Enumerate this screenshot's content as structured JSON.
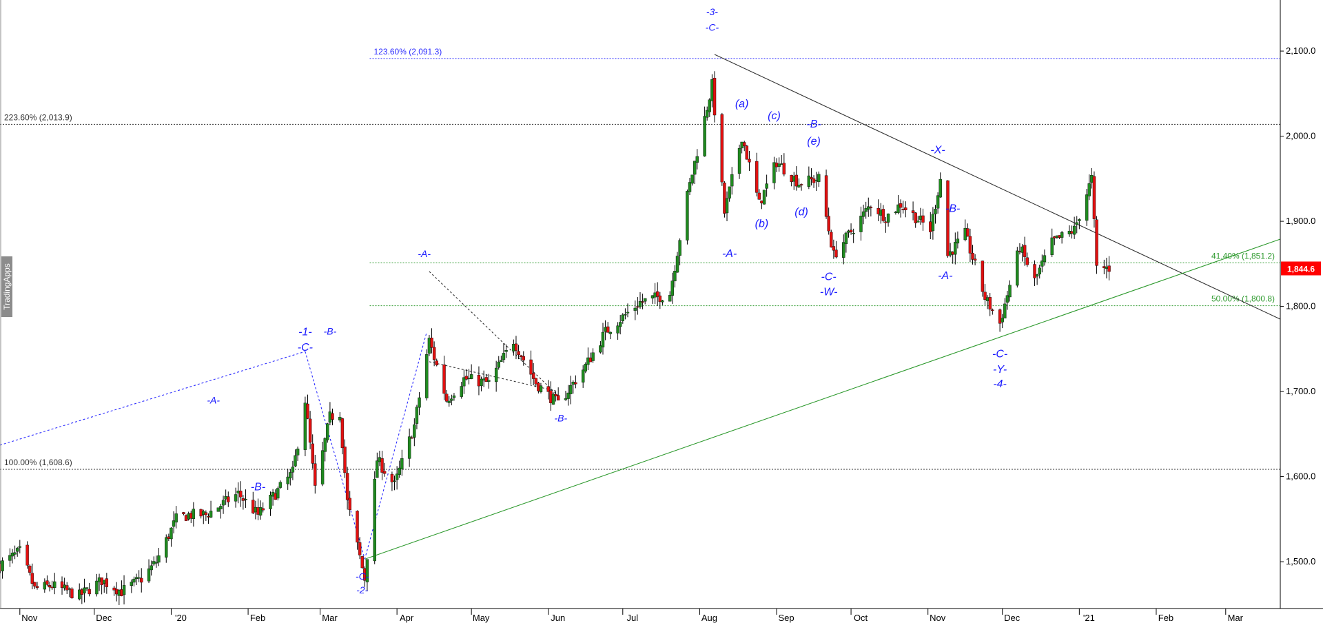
{
  "chart_data": {
    "type": "candlestick",
    "instrument_note": "",
    "watermark": "TradingApps",
    "y_axis": {
      "ylim": [
        1445,
        2160
      ],
      "ticks": [
        1500,
        1600,
        1700,
        1800,
        1900,
        2000,
        2100
      ],
      "tick_labels": [
        "1,500.0",
        "1,600.0",
        "1,700.0",
        "1,800.0",
        "1,900.0",
        "2,000.0",
        "2,100.0"
      ],
      "position": "right"
    },
    "x_axis": {
      "labels": [
        "Nov",
        "Dec",
        "'20",
        "Feb",
        "Mar",
        "Apr",
        "May",
        "Jun",
        "Jul",
        "Aug",
        "Sep",
        "Oct",
        "Nov",
        "Dec",
        "'21",
        "Feb",
        "Mar"
      ],
      "start": "2019-10-24",
      "end": "2021-03-23"
    },
    "last_price": {
      "value": 1844.6,
      "label": "1,844.6",
      "color": "#ff0000"
    },
    "fib_lines": [
      {
        "label": "123.60% (2,091.3)",
        "value": 2091.3,
        "color": "#2b2bff",
        "start": "2020-03-21",
        "label_side": "left"
      },
      {
        "label": "223.60% (2,013.9)",
        "value": 2013.9,
        "color": "#333333",
        "start": "2019-10-24",
        "label_side": "left"
      },
      {
        "label": "41.40% (1,851.2)",
        "value": 1851.2,
        "color": "#2e9a2e",
        "start": "2020-03-21",
        "label_side": "right"
      },
      {
        "label": "50.00% (1,800.8)",
        "value": 1800.8,
        "color": "#2e9a2e",
        "start": "2020-03-21",
        "label_side": "right"
      },
      {
        "label": "100.00% (1,608.6)",
        "value": 1608.6,
        "color": "#333333",
        "start": "2019-10-24",
        "label_side": "left"
      }
    ],
    "trendlines": [
      {
        "name": "resistance",
        "color": "#333333",
        "dash": false,
        "points": [
          [
            "2020-08-07",
            2096
          ],
          [
            "2021-03-23",
            1785
          ]
        ]
      },
      {
        "name": "support",
        "color": "#2e9a2e",
        "dash": false,
        "points": [
          [
            "2020-03-19",
            1503
          ],
          [
            "2021-03-23",
            1879
          ]
        ]
      },
      {
        "name": "wave-channel",
        "color": "#2b2bff",
        "dash": true,
        "points": [
          [
            "2019-10-24",
            1637
          ],
          [
            "2020-02-24",
            1747
          ]
        ]
      },
      {
        "name": "wave-drop",
        "color": "#2b2bff",
        "dash": true,
        "points": [
          [
            "2020-02-24",
            1747
          ],
          [
            "2020-03-19",
            1503
          ]
        ]
      },
      {
        "name": "wave-rise",
        "color": "#2b2bff",
        "dash": true,
        "points": [
          [
            "2020-03-19",
            1503
          ],
          [
            "2020-04-13",
            1770
          ]
        ]
      },
      {
        "name": "corr-upper",
        "color": "#333333",
        "dash": true,
        "points": [
          [
            "2020-04-14",
            1735
          ],
          [
            "2020-06-05",
            1700
          ]
        ]
      },
      {
        "name": "corr-lower",
        "color": "#333333",
        "dash": true,
        "points": [
          [
            "2020-04-14",
            1841
          ],
          [
            "2020-06-05",
            1695
          ]
        ]
      }
    ],
    "wave_labels": [
      {
        "text": "-3-",
        "date": "2020-08-06",
        "price": 2142,
        "size": 14
      },
      {
        "text": "-C-",
        "date": "2020-08-06",
        "price": 2124,
        "size": 14
      },
      {
        "text": "(a)",
        "date": "2020-08-18",
        "price": 2034,
        "size": 16
      },
      {
        "text": "(c)",
        "date": "2020-08-31",
        "price": 2020,
        "size": 16
      },
      {
        "text": "-B-",
        "date": "2020-09-16",
        "price": 2010,
        "size": 16
      },
      {
        "text": "(e)",
        "date": "2020-09-16",
        "price": 1990,
        "size": 16
      },
      {
        "text": "(b)",
        "date": "2020-08-26",
        "price": 1893,
        "size": 16
      },
      {
        "text": "(d)",
        "date": "2020-09-11",
        "price": 1907,
        "size": 16
      },
      {
        "text": "-A-",
        "date": "2020-08-13",
        "price": 1858,
        "size": 16
      },
      {
        "text": "-X-",
        "date": "2020-11-05",
        "price": 1980,
        "size": 16
      },
      {
        "text": "-B-",
        "date": "2020-11-11",
        "price": 1911,
        "size": 16
      },
      {
        "text": "-A-",
        "date": "2020-11-08",
        "price": 1832,
        "size": 16
      },
      {
        "text": "-C-",
        "date": "2020-09-22",
        "price": 1831,
        "size": 16
      },
      {
        "text": "-W-",
        "date": "2020-09-22",
        "price": 1813,
        "size": 16
      },
      {
        "text": "-C-",
        "date": "2020-11-30",
        "price": 1740,
        "size": 16
      },
      {
        "text": "-Y-",
        "date": "2020-11-30",
        "price": 1722,
        "size": 16
      },
      {
        "text": "-4-",
        "date": "2020-11-30",
        "price": 1705,
        "size": 16
      },
      {
        "text": "-A-",
        "date": "2020-04-12",
        "price": 1858,
        "size": 14
      },
      {
        "text": "-B-",
        "date": "2020-06-06",
        "price": 1665,
        "size": 14
      },
      {
        "text": "-1-",
        "date": "2020-02-24",
        "price": 1766,
        "size": 16
      },
      {
        "text": "-C-",
        "date": "2020-02-24",
        "price": 1748,
        "size": 16
      },
      {
        "text": "-B-",
        "date": "2020-03-05",
        "price": 1767,
        "size": 14
      },
      {
        "text": "-A-",
        "date": "2020-01-18",
        "price": 1686,
        "size": 14
      },
      {
        "text": "-B-",
        "date": "2020-02-05",
        "price": 1584,
        "size": 16
      },
      {
        "text": "-C-",
        "date": "2020-03-18",
        "price": 1479,
        "size": 14
      },
      {
        "text": "-2-",
        "date": "2020-03-18",
        "price": 1463,
        "size": 14
      }
    ],
    "price_path": [
      [
        "2019-10-24",
        1496,
        1510
      ],
      [
        "2019-11-01",
        1512,
        1515
      ],
      [
        "2019-11-07",
        1468,
        1470
      ],
      [
        "2019-11-14",
        1472,
        1475
      ],
      [
        "2019-11-25",
        1460,
        1462
      ],
      [
        "2019-12-04",
        1478,
        1480
      ],
      [
        "2019-12-12",
        1465,
        1468
      ],
      [
        "2019-12-20",
        1480,
        1482
      ],
      [
        "2019-12-26",
        1500,
        1505
      ],
      [
        "2020-01-03",
        1550,
        1560
      ],
      [
        "2020-01-08",
        1555,
        1585
      ],
      [
        "2020-01-15",
        1555,
        1560
      ],
      [
        "2020-01-28",
        1580,
        1585
      ],
      [
        "2020-02-05",
        1555,
        1560
      ],
      [
        "2020-02-19",
        1605,
        1610
      ],
      [
        "2020-02-24",
        1690,
        1700
      ],
      [
        "2020-02-28",
        1585,
        1590
      ],
      [
        "2020-03-05",
        1670,
        1680
      ],
      [
        "2020-03-09",
        1675,
        1690
      ],
      [
        "2020-03-12",
        1570,
        1580
      ],
      [
        "2020-03-19",
        1480,
        1485
      ],
      [
        "2020-03-24",
        1620,
        1630
      ],
      [
        "2020-03-31",
        1590,
        1600
      ],
      [
        "2020-04-08",
        1660,
        1670
      ],
      [
        "2020-04-14",
        1760,
        1770
      ],
      [
        "2020-04-21",
        1690,
        1695
      ],
      [
        "2020-04-28",
        1715,
        1720
      ],
      [
        "2020-05-08",
        1710,
        1715
      ],
      [
        "2020-05-18",
        1760,
        1765
      ],
      [
        "2020-05-27",
        1710,
        1715
      ],
      [
        "2020-06-05",
        1685,
        1690
      ],
      [
        "2020-06-16",
        1730,
        1735
      ],
      [
        "2020-06-24",
        1770,
        1775
      ],
      [
        "2020-07-08",
        1805,
        1810
      ],
      [
        "2020-07-20",
        1815,
        1818
      ],
      [
        "2020-07-27",
        1930,
        1935
      ],
      [
        "2020-08-06",
        2060,
        2070
      ],
      [
        "2020-08-11",
        1910,
        1915
      ],
      [
        "2020-08-18",
        2000,
        2005
      ],
      [
        "2020-08-25",
        1920,
        1925
      ],
      [
        "2020-09-01",
        1970,
        1975
      ],
      [
        "2020-09-10",
        1945,
        1950
      ],
      [
        "2020-09-18",
        1950,
        1955
      ],
      [
        "2020-09-24",
        1860,
        1865
      ],
      [
        "2020-10-09",
        1920,
        1925
      ],
      [
        "2020-10-15",
        1905,
        1910
      ],
      [
        "2020-10-21",
        1920,
        1925
      ],
      [
        "2020-11-02",
        1890,
        1895
      ],
      [
        "2020-11-06",
        1950,
        1955
      ],
      [
        "2020-11-09",
        1860,
        1865
      ],
      [
        "2020-11-16",
        1885,
        1890
      ],
      [
        "2020-11-24",
        1810,
        1815
      ],
      [
        "2020-11-30",
        1780,
        1785
      ],
      [
        "2020-12-08",
        1870,
        1875
      ],
      [
        "2020-12-14",
        1830,
        1835
      ],
      [
        "2020-12-21",
        1875,
        1880
      ],
      [
        "2020-12-30",
        1890,
        1895
      ],
      [
        "2021-01-06",
        1950,
        1955
      ],
      [
        "2021-01-08",
        1845,
        1850
      ],
      [
        "2021-01-13",
        1845,
        1846
      ]
    ]
  }
}
